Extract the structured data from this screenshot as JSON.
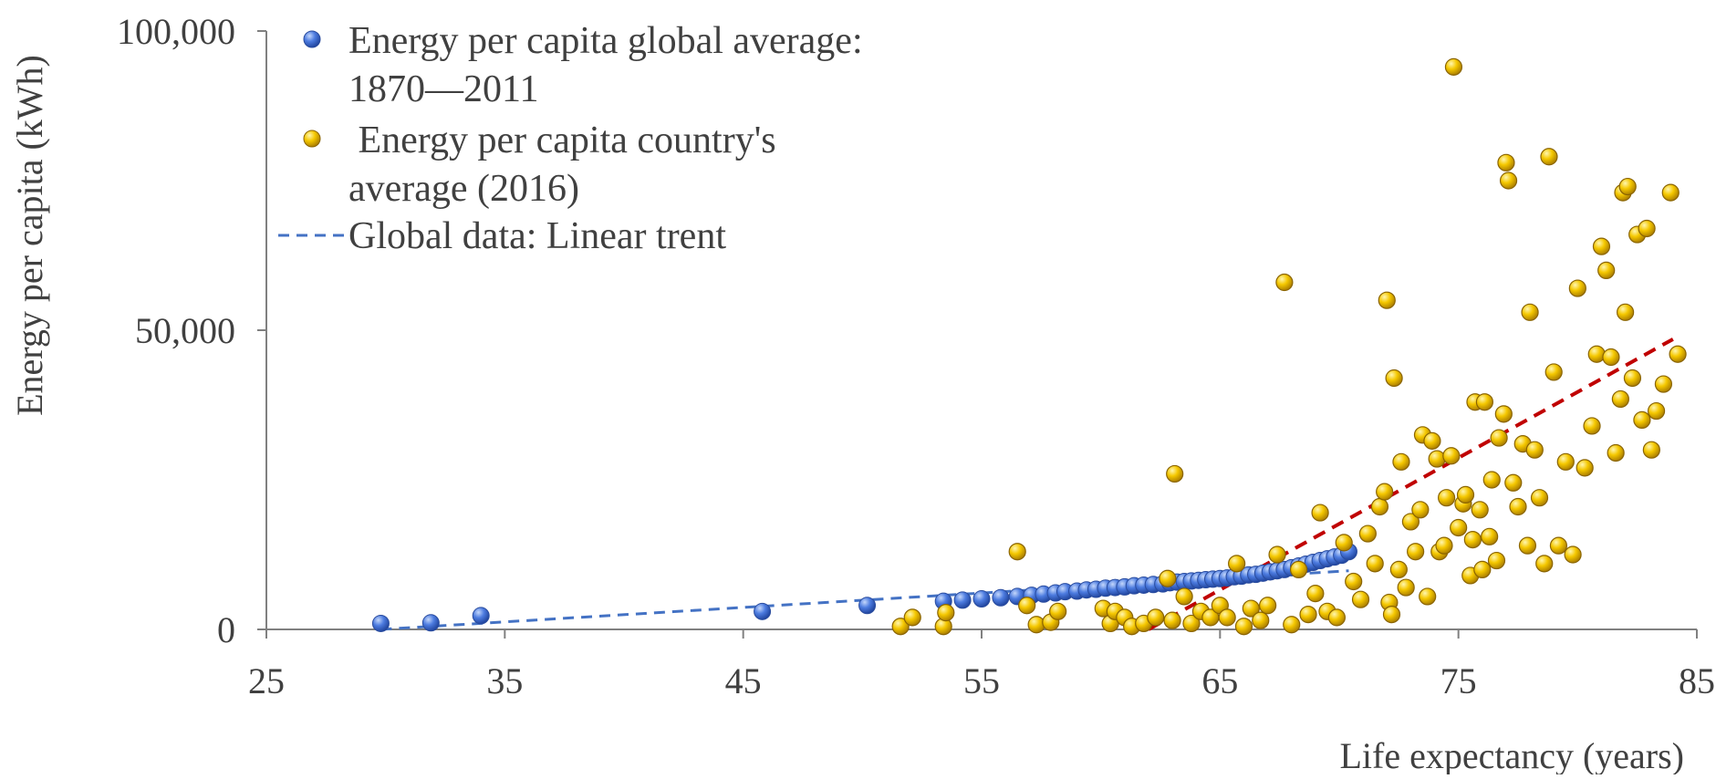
{
  "chart_data": {
    "type": "scatter",
    "xlabel": "Life expectancy (years)",
    "ylabel": "Energy per capita (kWh)",
    "xlim": [
      25,
      85
    ],
    "ylim": [
      0,
      100000
    ],
    "x_ticks": [
      "25",
      "35",
      "45",
      "55",
      "65",
      "75",
      "85"
    ],
    "y_ticks": [
      "0",
      "50,000",
      "100,000"
    ],
    "grid": false,
    "legend_position": "top-left",
    "colors": {
      "global_points": "#3f6fd0",
      "country_points": "#f2c200",
      "global_trend": "#4472c4",
      "country_trend": "#c00000",
      "axis": "#808080",
      "text": "#404040"
    },
    "legend": [
      {
        "key": "global",
        "lines": [
          "Energy per capita global average:",
          "1870—2011"
        ]
      },
      {
        "key": "country",
        "lines": [
          " Energy per capita country's",
          "average (2016)"
        ]
      },
      {
        "key": "trend",
        "lines": [
          "Global data: Linear trent"
        ]
      }
    ],
    "series": [
      {
        "name": "Energy per capita global average: 1870—2011",
        "marker": "circle",
        "points": [
          [
            29.8,
            1000
          ],
          [
            31.9,
            1100
          ],
          [
            34,
            2300
          ],
          [
            45.8,
            3000
          ],
          [
            50.2,
            4000
          ],
          [
            53.4,
            4700
          ],
          [
            54.2,
            4900
          ],
          [
            55,
            5100
          ],
          [
            55.8,
            5300
          ],
          [
            56.5,
            5500
          ],
          [
            57.1,
            5700
          ],
          [
            57.6,
            5900
          ],
          [
            58.1,
            6100
          ],
          [
            58.5,
            6300
          ],
          [
            59,
            6400
          ],
          [
            59.4,
            6600
          ],
          [
            59.8,
            6700
          ],
          [
            60.2,
            6900
          ],
          [
            60.6,
            7000
          ],
          [
            61,
            7100
          ],
          [
            61.4,
            7300
          ],
          [
            61.8,
            7400
          ],
          [
            62.2,
            7500
          ],
          [
            62.6,
            7600
          ],
          [
            62.9,
            7800
          ],
          [
            63.2,
            7900
          ],
          [
            63.5,
            8000
          ],
          [
            63.8,
            8100
          ],
          [
            64.1,
            8200
          ],
          [
            64.4,
            8300
          ],
          [
            64.7,
            8400
          ],
          [
            65,
            8500
          ],
          [
            65.3,
            8600
          ],
          [
            65.6,
            8800
          ],
          [
            65.9,
            8900
          ],
          [
            66.2,
            9100
          ],
          [
            66.5,
            9200
          ],
          [
            66.8,
            9400
          ],
          [
            67.1,
            9600
          ],
          [
            67.4,
            9800
          ],
          [
            67.7,
            10000
          ],
          [
            68,
            10300
          ],
          [
            68.3,
            10600
          ],
          [
            68.6,
            10900
          ],
          [
            68.9,
            11200
          ],
          [
            69.2,
            11500
          ],
          [
            69.5,
            11800
          ],
          [
            69.8,
            12100
          ],
          [
            70.1,
            12400
          ],
          [
            70.4,
            13000
          ]
        ]
      },
      {
        "name": "Energy per capita country's average (2016)",
        "marker": "circle",
        "points": [
          [
            51.6,
            500
          ],
          [
            52.1,
            2000
          ],
          [
            53.4,
            500
          ],
          [
            53.5,
            2800
          ],
          [
            56.5,
            13000
          ],
          [
            56.9,
            4000
          ],
          [
            57.3,
            800
          ],
          [
            57.9,
            1200
          ],
          [
            58.2,
            3000
          ],
          [
            60.1,
            3500
          ],
          [
            60.4,
            1000
          ],
          [
            60.6,
            3000
          ],
          [
            61,
            2000
          ],
          [
            61.3,
            500
          ],
          [
            61.8,
            1000
          ],
          [
            62.3,
            2000
          ],
          [
            62.8,
            8500
          ],
          [
            63,
            1500
          ],
          [
            63.1,
            26000
          ],
          [
            63.5,
            5500
          ],
          [
            63.8,
            1000
          ],
          [
            64.2,
            3000
          ],
          [
            64.6,
            2000
          ],
          [
            65,
            4000
          ],
          [
            65.3,
            2000
          ],
          [
            65.7,
            11000
          ],
          [
            66,
            500
          ],
          [
            66.3,
            3500
          ],
          [
            66.7,
            1500
          ],
          [
            67,
            4000
          ],
          [
            67.4,
            12500
          ],
          [
            67.7,
            58000
          ],
          [
            68,
            800
          ],
          [
            68.3,
            10000
          ],
          [
            68.7,
            2500
          ],
          [
            69,
            6000
          ],
          [
            69.2,
            19500
          ],
          [
            69.5,
            3000
          ],
          [
            69.9,
            2000
          ],
          [
            70.2,
            14500
          ],
          [
            70.6,
            8000
          ],
          [
            70.9,
            5000
          ],
          [
            71.2,
            16000
          ],
          [
            71.5,
            11000
          ],
          [
            71.7,
            20500
          ],
          [
            71.9,
            23000
          ],
          [
            72,
            55000
          ],
          [
            72.1,
            4500
          ],
          [
            72.2,
            2500
          ],
          [
            72.3,
            42000
          ],
          [
            72.5,
            10000
          ],
          [
            72.6,
            28000
          ],
          [
            72.8,
            7000
          ],
          [
            73,
            18000
          ],
          [
            73.2,
            13000
          ],
          [
            73.4,
            20000
          ],
          [
            73.5,
            32500
          ],
          [
            73.7,
            5500
          ],
          [
            73.9,
            31500
          ],
          [
            74.1,
            28500
          ],
          [
            74.2,
            13000
          ],
          [
            74.4,
            14000
          ],
          [
            74.5,
            22000
          ],
          [
            74.7,
            29000
          ],
          [
            74.8,
            94000
          ],
          [
            75,
            17000
          ],
          [
            75.2,
            21000
          ],
          [
            75.3,
            22500
          ],
          [
            75.5,
            9000
          ],
          [
            75.6,
            15000
          ],
          [
            75.7,
            38000
          ],
          [
            75.9,
            20000
          ],
          [
            76,
            10000
          ],
          [
            76.1,
            38000
          ],
          [
            76.3,
            15500
          ],
          [
            76.4,
            25000
          ],
          [
            76.6,
            11500
          ],
          [
            76.7,
            32000
          ],
          [
            76.9,
            36000
          ],
          [
            77,
            78000
          ],
          [
            77.1,
            75000
          ],
          [
            77.3,
            24500
          ],
          [
            77.5,
            20500
          ],
          [
            77.7,
            31000
          ],
          [
            77.9,
            14000
          ],
          [
            78,
            53000
          ],
          [
            78.2,
            30000
          ],
          [
            78.4,
            22000
          ],
          [
            78.6,
            11000
          ],
          [
            78.8,
            79000
          ],
          [
            79,
            43000
          ],
          [
            79.2,
            14000
          ],
          [
            79.5,
            28000
          ],
          [
            79.8,
            12500
          ],
          [
            80,
            57000
          ],
          [
            80.3,
            27000
          ],
          [
            80.6,
            34000
          ],
          [
            80.8,
            46000
          ],
          [
            81,
            64000
          ],
          [
            81.2,
            60000
          ],
          [
            81.4,
            45500
          ],
          [
            81.6,
            29500
          ],
          [
            81.8,
            38500
          ],
          [
            81.9,
            73000
          ],
          [
            82,
            53000
          ],
          [
            82.1,
            74000
          ],
          [
            82.3,
            42000
          ],
          [
            82.5,
            66000
          ],
          [
            82.7,
            35000
          ],
          [
            82.9,
            67000
          ],
          [
            83.1,
            30000
          ],
          [
            83.3,
            36500
          ],
          [
            83.6,
            41000
          ],
          [
            83.9,
            73000
          ],
          [
            84.2,
            46000
          ]
        ]
      }
    ],
    "trendlines": [
      {
        "series": "global",
        "label": "Global data: Linear trent",
        "x": [
          29.8,
          70.4
        ],
        "y": [
          0,
          9800
        ]
      },
      {
        "series": "country",
        "label": "",
        "x": [
          62,
          84
        ],
        "y": [
          0,
          48500
        ]
      }
    ]
  }
}
